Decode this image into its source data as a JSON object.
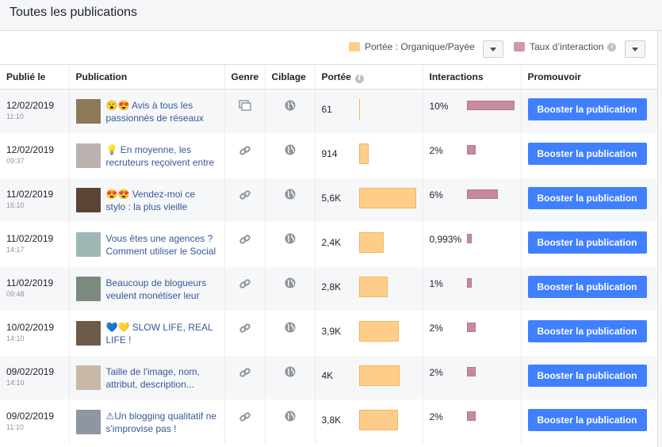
{
  "header": {
    "title": "Toutes les publications"
  },
  "legend": {
    "reach_label": "Portée : Organique/Payée",
    "reach_color": "#ffcd8a",
    "engagement_label": "Taux d’interaction",
    "engagement_color": "#d197a9"
  },
  "columns": {
    "published": "Publié le",
    "post": "Publication",
    "type": "Genre",
    "targeting": "Ciblage",
    "reach": "Portée",
    "interactions": "Interactions",
    "promote": "Promouvoir"
  },
  "rows": [
    {
      "date": "12/02/2019",
      "time": "11:10",
      "text": "😮😍 Avis à tous les passionnés de réseaux",
      "type_icon": "album-icon",
      "reach": "61",
      "reach_fraction": 0.01,
      "engagement": "10%",
      "engagement_fraction": 1.0,
      "boost": "Booster la publication",
      "thumb_color": "#8d7a57"
    },
    {
      "date": "12/02/2019",
      "time": "09:37",
      "text": "💡 En moyenne, les recruteurs reçoivent entre",
      "type_icon": "link-icon",
      "reach": "914",
      "reach_fraction": 0.16,
      "engagement": "2%",
      "engagement_fraction": 0.18,
      "boost": "Booster la publication",
      "thumb_color": "#b9b2ae"
    },
    {
      "date": "11/02/2019",
      "time": "16:10",
      "text": "😍😍 Vendez-moi ce stylo : la plus vieille",
      "type_icon": "link-icon",
      "reach": "5,6K",
      "reach_fraction": 1.0,
      "engagement": "6%",
      "engagement_fraction": 0.65,
      "boost": "Booster la publication",
      "thumb_color": "#5b4336"
    },
    {
      "date": "11/02/2019",
      "time": "14:17",
      "text": "Vous êtes une agences ? Comment utiliser le Social",
      "type_icon": "link-icon",
      "reach": "2,4K",
      "reach_fraction": 0.43,
      "engagement": "0,993%",
      "engagement_fraction": 0.1,
      "boost": "Booster la publication",
      "thumb_color": "#9fb8b5"
    },
    {
      "date": "11/02/2019",
      "time": "09:48",
      "text": "Beaucoup de blogueurs veulent monétiser leur",
      "type_icon": "link-icon",
      "reach": "2,8K",
      "reach_fraction": 0.5,
      "engagement": "1%",
      "engagement_fraction": 0.1,
      "boost": "Booster la publication",
      "thumb_color": "#7a8a7e"
    },
    {
      "date": "10/02/2019",
      "time": "14:10",
      "text": "💙💛 SLOW LIFE, REAL LIFE !",
      "type_icon": "link-icon",
      "reach": "3,9K",
      "reach_fraction": 0.69,
      "engagement": "2%",
      "engagement_fraction": 0.18,
      "boost": "Booster la publication",
      "thumb_color": "#6d5a48"
    },
    {
      "date": "09/02/2019",
      "time": "14:10",
      "text": "Taille de l'image, nom, attribut, description...",
      "type_icon": "link-icon",
      "reach": "4K",
      "reach_fraction": 0.71,
      "engagement": "2%",
      "engagement_fraction": 0.18,
      "boost": "Booster la publication",
      "thumb_color": "#c9b8a8"
    },
    {
      "date": "09/02/2019",
      "time": "11:10",
      "text": "⚠Un blogging qualitatif ne s'improvise pas !",
      "type_icon": "link-icon",
      "reach": "3,8K",
      "reach_fraction": 0.68,
      "engagement": "2%",
      "engagement_fraction": 0.18,
      "boost": "Booster la publication",
      "thumb_color": "#8e96a0"
    }
  ]
}
